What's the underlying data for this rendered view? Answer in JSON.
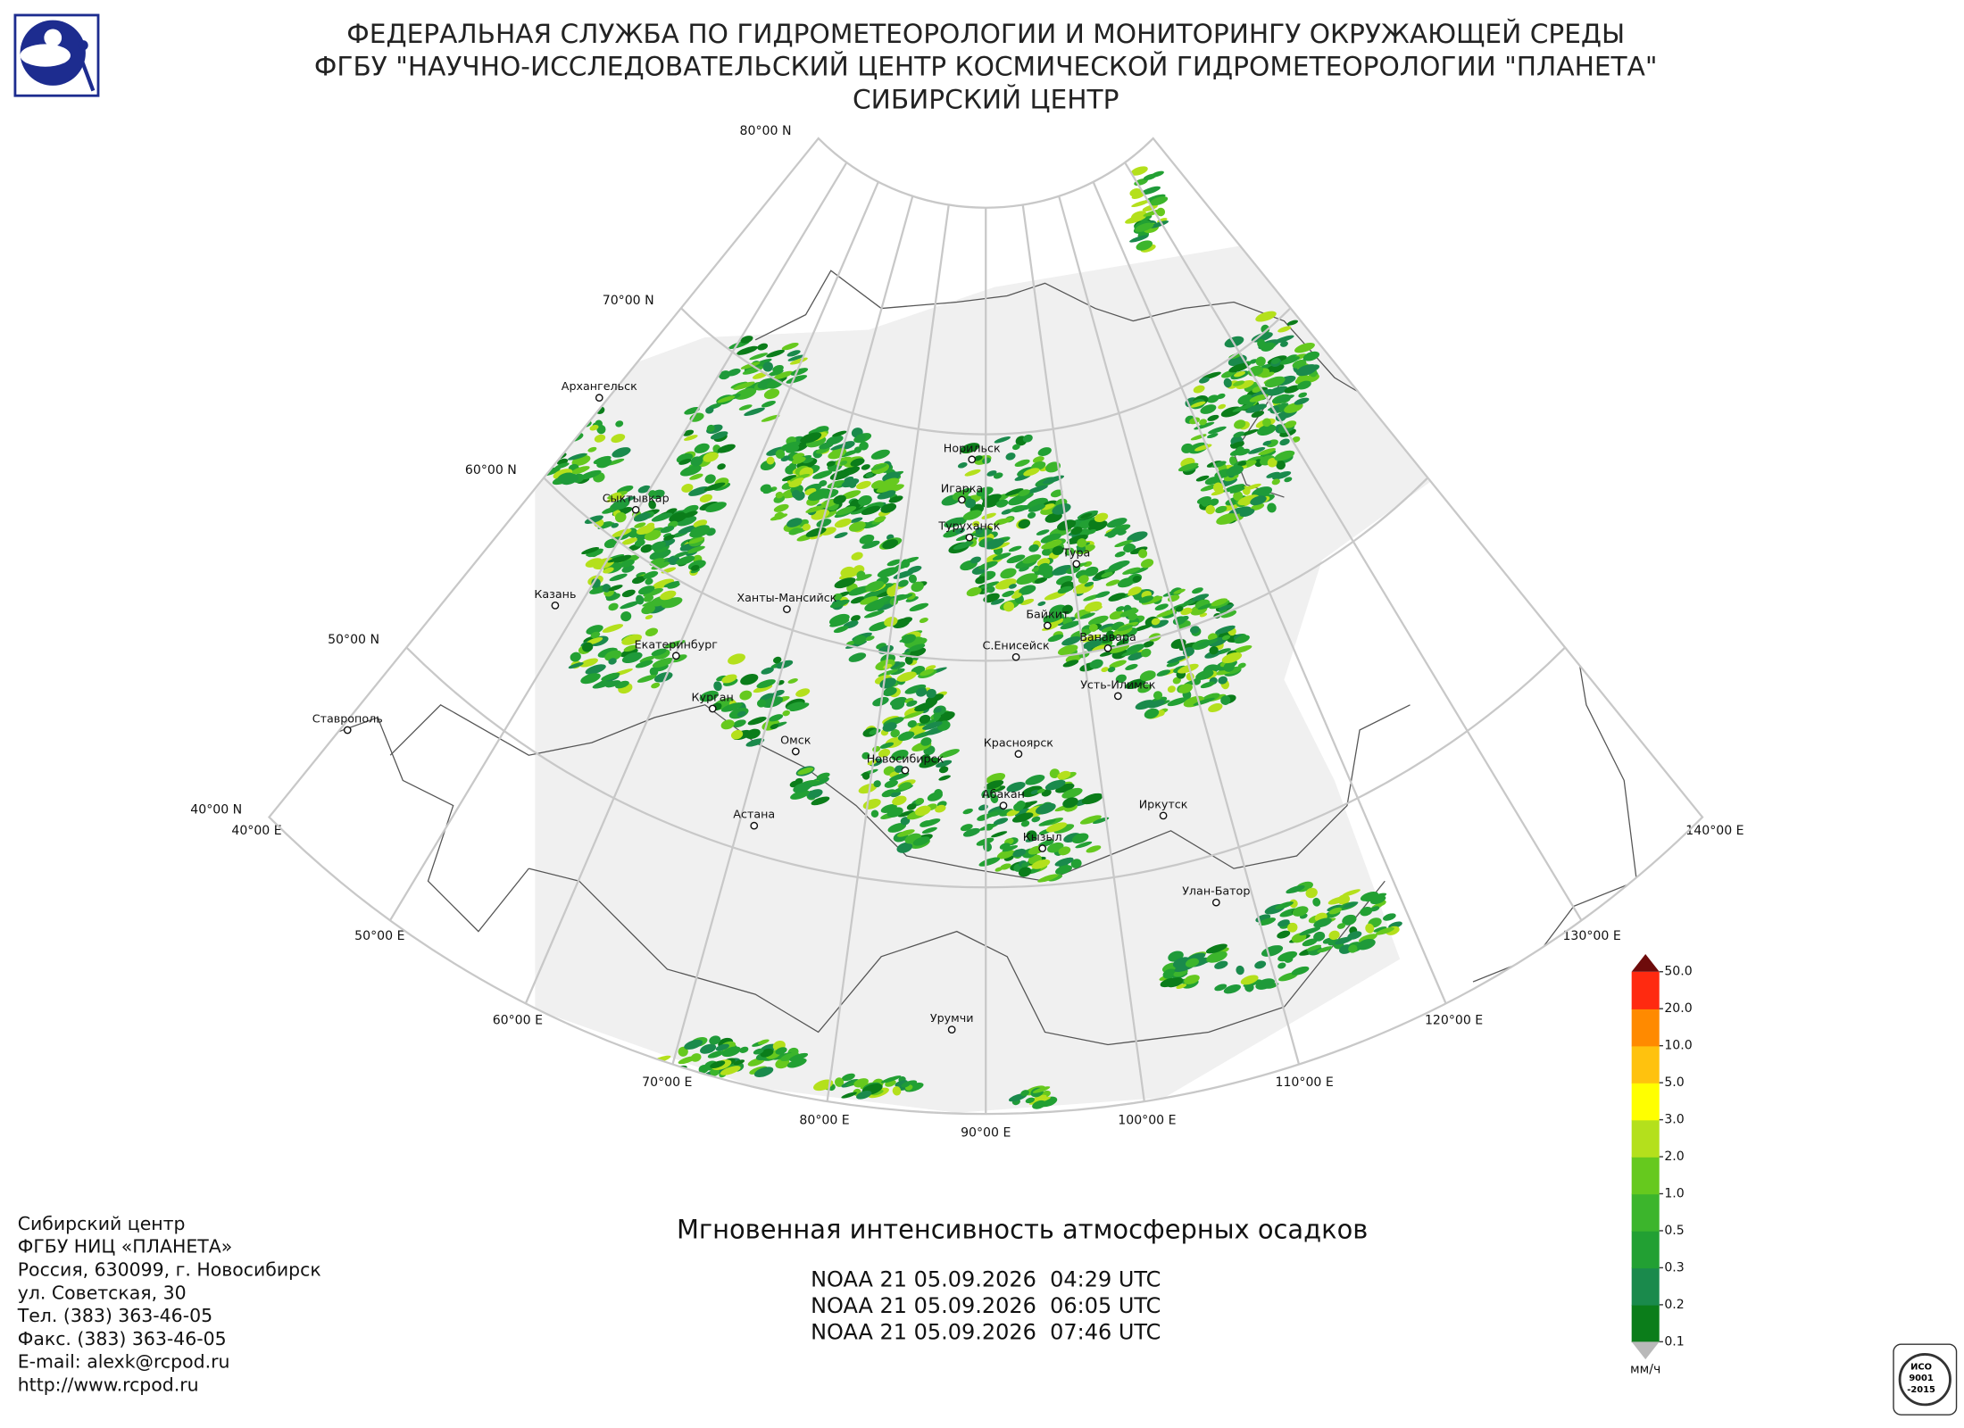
{
  "header": {
    "lines": [
      "ФЕДЕРАЛЬНАЯ СЛУЖБА ПО ГИДРОМЕТЕОРОЛОГИИ И МОНИТОРИНГУ ОКРУЖАЮЩЕЙ СРЕДЫ",
      "ФГБУ \"НАУЧНО-ИССЛЕДОВАТЕЛЬСКИЙ ЦЕНТР КОСМИЧЕСКОЙ ГИДРОМЕТЕОРОЛОГИИ \"ПЛАНЕТА\"",
      "СИБИРСКИЙ ЦЕНТР"
    ]
  },
  "map": {
    "parallel_labels": [
      "80°00 N",
      "70°00 N",
      "60°00 N",
      "50°00 N",
      "40°00 N"
    ],
    "meridian_labels": [
      "40°00 E",
      "50°00 E",
      "60°00 E",
      "70°00 E",
      "80°00 E",
      "90°00 E",
      "100°00 E",
      "110°00 E",
      "120°00 E",
      "130°00 E",
      "140°00 E"
    ],
    "cities": [
      "Архангельск",
      "Сыктывкар",
      "Казань",
      "Екатеринбург",
      "Ханты-Мансийск",
      "Курган",
      "Омск",
      "Новосибирск",
      "Астана",
      "Ставрополь",
      "Норильск",
      "Игарка",
      "Туруханск",
      "Тура",
      "Байкит",
      "Ванавара",
      "С.Енисейск",
      "Усть-Илимск",
      "Красноярск",
      "Абакан",
      "Кызыл",
      "Иркутск",
      "Улан-Батор",
      "Урумчи"
    ]
  },
  "product": {
    "title": "Мгновенная интенсивность атмосферных осадков",
    "passes": [
      "NOAA 21 05.09.2026  04:29 UTC",
      "NOAA 21 05.09.2026  06:05 UTC",
      "NOAA 21 05.09.2026  07:46 UTC"
    ]
  },
  "legend": {
    "levels": [
      0.1,
      0.2,
      0.3,
      0.5,
      {
        "value": 1,
        "label": "1.0"
      },
      {
        "value": 2,
        "label": "2.0"
      },
      {
        "value": 3,
        "label": "3.0"
      },
      {
        "value": 5,
        "label": "5.0"
      },
      {
        "value": 10,
        "label": "10.0"
      },
      {
        "value": 20,
        "label": "20.0"
      },
      {
        "value": 50,
        "label": "50.0"
      }
    ],
    "colors": [
      "#0b7d1a",
      "#1a8a4c",
      "#22a033",
      "#3cb52c",
      "#66c91e",
      "#b4e01c",
      "#ffff00",
      "#ffc20e",
      "#ff8a00",
      "#ff2a10",
      "#c40c0c"
    ],
    "under_color": "#b9b9b9",
    "over_color": "#6e0b0b",
    "unit": "мм/ч"
  },
  "footer": {
    "lines": [
      "Сибирский центр",
      "ФГБУ НИЦ «ПЛАНЕТА»",
      "Россия, 630099, г. Новосибирск",
      "ул. Советская, 30",
      "Тел. (383) 363-46-05",
      "Факс. (383) 363-46-05",
      "E-mail: alexk@rcpod.ru",
      "http://www.rcpod.ru"
    ]
  },
  "badge": {
    "lines": [
      "ИСО",
      "9001",
      "-2015"
    ]
  }
}
